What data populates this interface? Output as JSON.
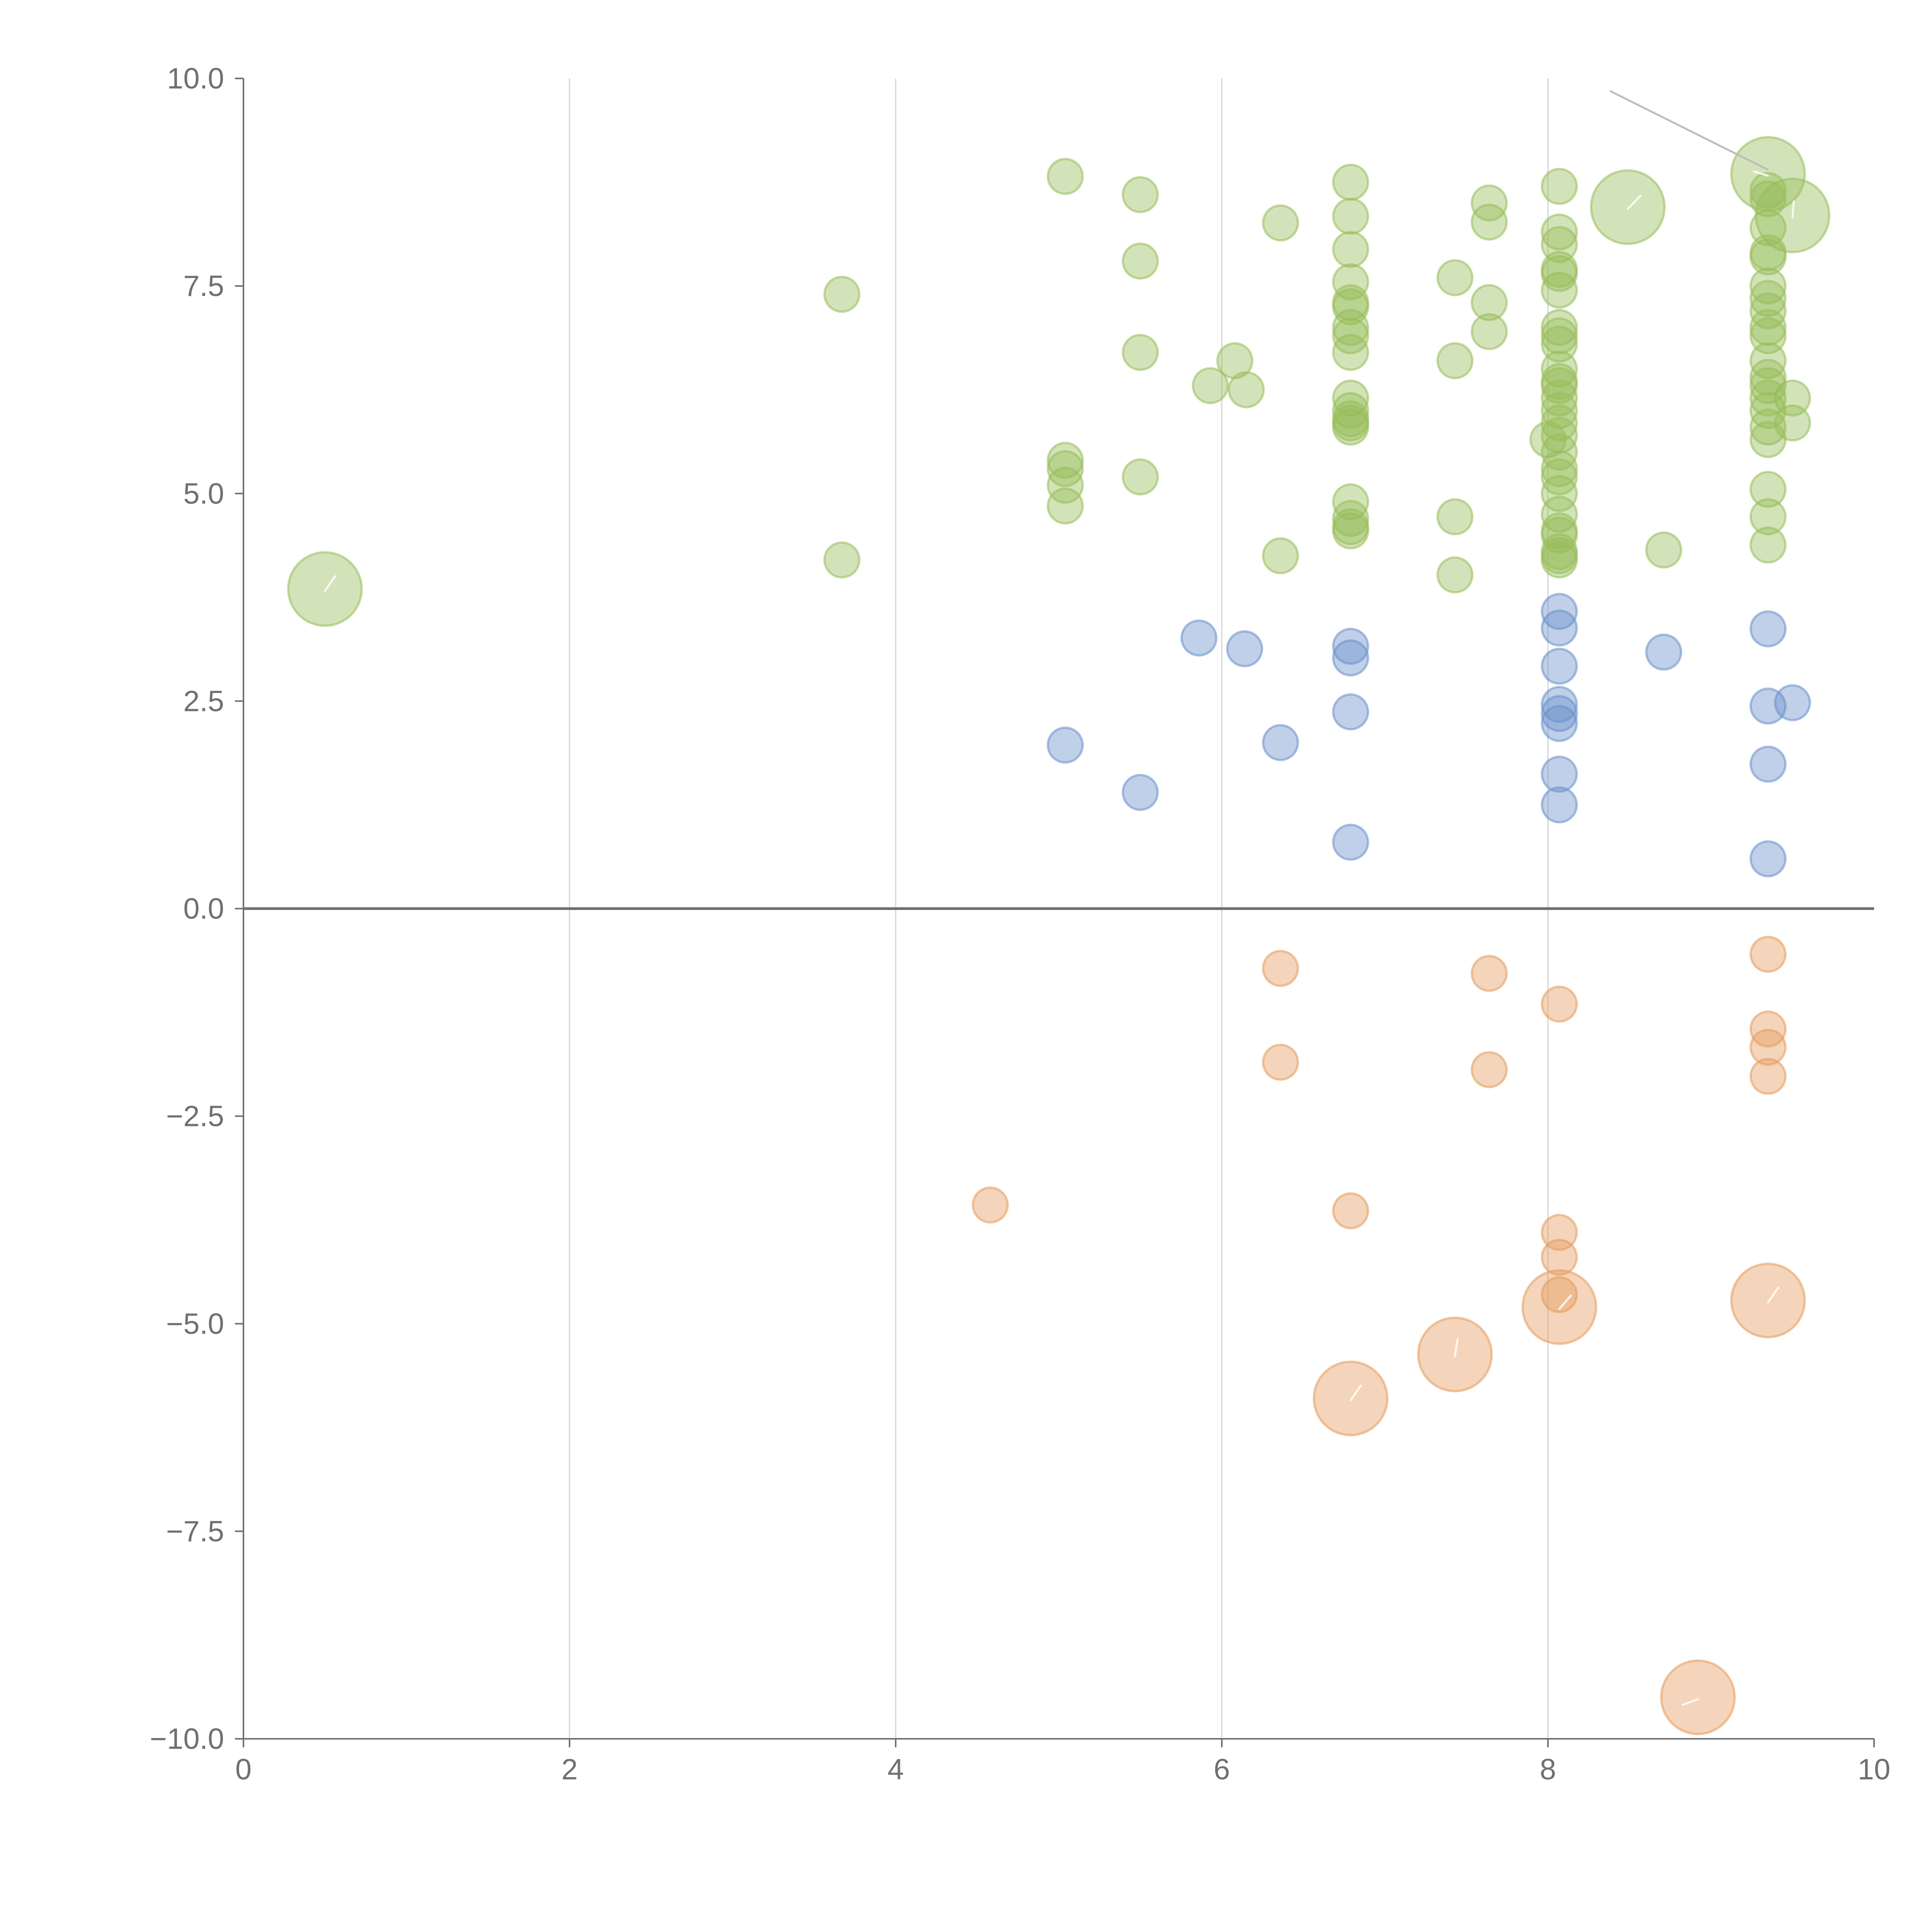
{
  "colors": {
    "positive": "#97bd59",
    "neutral": "#6990cb",
    "negative": "#e59a5c",
    "axis": "#707070",
    "grid": "#d3d3d3",
    "background": "#ffffff"
  },
  "chart_data": {
    "type": "scatter",
    "title": "",
    "xlabel": "",
    "ylabel": "",
    "xlim": [
      0,
      10
    ],
    "ylim": [
      -10,
      10
    ],
    "x_ticks": [
      "0",
      "2",
      "4",
      "6",
      "8",
      "10"
    ],
    "y_ticks": [
      "10.0",
      "7.5",
      "5.0",
      "2.5",
      "0.0",
      "−2.5",
      "−5.0",
      "−7.5",
      "−10.0"
    ],
    "grid": "vertical",
    "legend": "none",
    "series": [
      {
        "color_key": "positive",
        "points": [
          [
            0.5,
            3.85,
            3
          ],
          [
            3.67,
            7.4,
            1
          ],
          [
            3.67,
            4.2,
            1
          ],
          [
            5.04,
            8.82,
            1
          ],
          [
            5.04,
            5.4,
            1
          ],
          [
            5.04,
            5.3,
            1
          ],
          [
            5.04,
            5.1,
            1
          ],
          [
            5.04,
            4.85,
            1
          ],
          [
            5.5,
            8.6,
            1
          ],
          [
            5.5,
            7.8,
            1
          ],
          [
            5.5,
            6.7,
            1
          ],
          [
            5.5,
            5.2,
            1
          ],
          [
            5.93,
            6.3,
            1
          ],
          [
            6.08,
            6.6,
            1
          ],
          [
            6.15,
            6.25,
            1
          ],
          [
            6.36,
            8.26,
            1
          ],
          [
            6.36,
            4.25,
            1
          ],
          [
            6.79,
            8.75,
            1
          ],
          [
            6.79,
            8.34,
            1
          ],
          [
            6.79,
            7.94,
            1
          ],
          [
            6.79,
            7.55,
            1
          ],
          [
            6.79,
            7.3,
            1
          ],
          [
            6.79,
            7.25,
            1
          ],
          [
            6.79,
            7.0,
            1
          ],
          [
            6.79,
            6.9,
            1
          ],
          [
            6.79,
            6.7,
            1
          ],
          [
            6.79,
            6.15,
            1
          ],
          [
            6.79,
            6.0,
            1
          ],
          [
            6.79,
            5.9,
            1
          ],
          [
            6.79,
            5.85,
            1
          ],
          [
            6.79,
            5.8,
            1
          ],
          [
            6.79,
            4.9,
            1
          ],
          [
            6.79,
            4.7,
            1
          ],
          [
            6.79,
            4.6,
            1
          ],
          [
            6.79,
            4.55,
            1
          ],
          [
            7.43,
            7.6,
            1
          ],
          [
            7.43,
            6.6,
            1
          ],
          [
            7.43,
            4.72,
            1
          ],
          [
            7.43,
            4.02,
            1
          ],
          [
            7.64,
            8.5,
            1
          ],
          [
            7.64,
            8.27,
            1
          ],
          [
            7.64,
            7.3,
            1
          ],
          [
            7.64,
            6.95,
            1
          ],
          [
            8.07,
            8.7,
            1
          ],
          [
            8.07,
            8.15,
            1
          ],
          [
            8.07,
            8.0,
            1
          ],
          [
            8.07,
            7.7,
            1
          ],
          [
            8.07,
            7.65,
            1
          ],
          [
            8.07,
            7.45,
            1
          ],
          [
            8.07,
            7.0,
            1
          ],
          [
            8.07,
            6.9,
            1
          ],
          [
            8.07,
            6.8,
            1
          ],
          [
            8.07,
            6.5,
            1
          ],
          [
            8.07,
            6.35,
            1
          ],
          [
            8.07,
            6.3,
            1
          ],
          [
            8.07,
            6.15,
            1
          ],
          [
            8.07,
            6.0,
            1
          ],
          [
            8.07,
            5.85,
            1
          ],
          [
            8.07,
            5.7,
            1
          ],
          [
            8.0,
            5.65,
            1
          ],
          [
            8.07,
            5.5,
            1
          ],
          [
            8.07,
            5.3,
            1
          ],
          [
            8.07,
            5.2,
            1
          ],
          [
            8.07,
            5.0,
            1
          ],
          [
            8.07,
            4.75,
            1
          ],
          [
            8.07,
            4.55,
            1
          ],
          [
            8.07,
            4.5,
            1
          ],
          [
            8.07,
            4.3,
            1
          ],
          [
            8.07,
            4.25,
            1
          ],
          [
            8.07,
            4.2,
            1
          ],
          [
            8.49,
            8.45,
            3
          ],
          [
            8.71,
            4.32,
            1
          ],
          [
            9.35,
            8.85,
            3
          ],
          [
            9.5,
            8.35,
            3
          ],
          [
            9.35,
            8.65,
            1
          ],
          [
            9.35,
            8.55,
            1
          ],
          [
            9.35,
            8.2,
            1
          ],
          [
            9.35,
            7.9,
            1
          ],
          [
            9.35,
            7.85,
            1
          ],
          [
            9.35,
            7.5,
            1
          ],
          [
            9.35,
            7.35,
            1
          ],
          [
            9.35,
            7.2,
            1
          ],
          [
            9.35,
            7.0,
            1
          ],
          [
            9.35,
            6.9,
            1
          ],
          [
            9.35,
            6.6,
            1
          ],
          [
            9.35,
            6.4,
            1
          ],
          [
            9.35,
            6.3,
            1
          ],
          [
            9.35,
            6.15,
            1
          ],
          [
            9.35,
            6.0,
            1
          ],
          [
            9.35,
            5.8,
            1
          ],
          [
            9.35,
            5.65,
            1
          ],
          [
            9.5,
            6.15,
            1
          ],
          [
            9.5,
            5.85,
            1
          ],
          [
            9.35,
            5.05,
            1
          ],
          [
            9.35,
            4.72,
            1
          ],
          [
            9.35,
            4.38,
            1
          ]
        ]
      },
      {
        "color_key": "neutral",
        "points": [
          [
            5.04,
            1.97,
            1
          ],
          [
            5.5,
            1.4,
            1
          ],
          [
            5.86,
            3.26,
            1
          ],
          [
            6.14,
            3.13,
            1
          ],
          [
            6.36,
            2.0,
            1
          ],
          [
            6.79,
            3.16,
            1
          ],
          [
            6.79,
            3.02,
            1
          ],
          [
            6.79,
            2.37,
            1
          ],
          [
            6.79,
            0.8,
            1
          ],
          [
            8.07,
            3.58,
            1
          ],
          [
            8.07,
            3.38,
            1
          ],
          [
            8.07,
            2.92,
            1
          ],
          [
            8.07,
            2.46,
            1
          ],
          [
            8.07,
            2.35,
            1
          ],
          [
            8.07,
            2.23,
            1
          ],
          [
            8.07,
            1.62,
            1
          ],
          [
            8.07,
            1.25,
            1
          ],
          [
            8.71,
            3.09,
            1
          ],
          [
            9.35,
            3.37,
            1
          ],
          [
            9.35,
            2.44,
            1
          ],
          [
            9.5,
            2.48,
            1
          ],
          [
            9.35,
            1.74,
            1
          ],
          [
            9.35,
            0.6,
            1
          ]
        ]
      },
      {
        "color_key": "negative",
        "points": [
          [
            4.58,
            -3.57,
            1
          ],
          [
            6.36,
            -0.72,
            1
          ],
          [
            6.36,
            -1.85,
            1
          ],
          [
            6.79,
            -3.64,
            1
          ],
          [
            6.79,
            -5.9,
            3
          ],
          [
            7.43,
            -5.37,
            3
          ],
          [
            7.64,
            -0.78,
            1
          ],
          [
            7.64,
            -1.94,
            1
          ],
          [
            8.07,
            -1.15,
            1
          ],
          [
            8.07,
            -3.9,
            1
          ],
          [
            8.07,
            -4.2,
            1
          ],
          [
            8.07,
            -4.65,
            1
          ],
          [
            8.07,
            -4.8,
            3
          ],
          [
            8.92,
            -9.5,
            3
          ],
          [
            9.35,
            -0.55,
            1
          ],
          [
            9.35,
            -1.45,
            1
          ],
          [
            9.35,
            -1.67,
            1
          ],
          [
            9.35,
            -2.02,
            1
          ],
          [
            9.35,
            -4.72,
            3
          ]
        ]
      }
    ]
  }
}
